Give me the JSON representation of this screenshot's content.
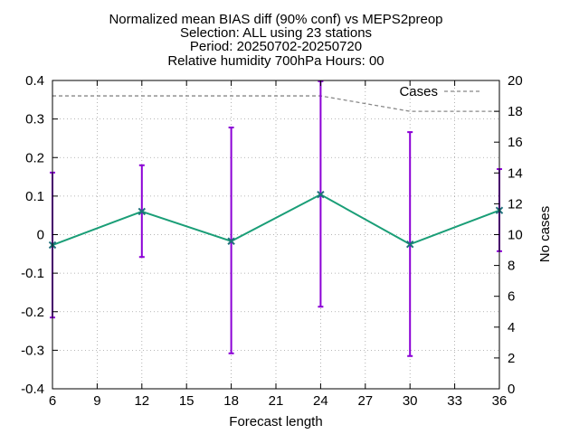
{
  "title": {
    "line1": "Normalized mean BIAS diff (90% conf) vs MEPS2preop",
    "line2": "Selection: ALL using    23 stations",
    "line3": "Period: 20250702-20250720",
    "line4": "Relative humidity 700hPa   Hours: 00"
  },
  "chart_data": {
    "type": "line",
    "xlabel": "Forecast length",
    "ylabel": "",
    "y2label": "No cases",
    "xlim": [
      6,
      36
    ],
    "ylim": [
      -0.4,
      0.4
    ],
    "y2lim": [
      0,
      20
    ],
    "x_ticks": [
      "6",
      "9",
      "12",
      "15",
      "18",
      "21",
      "24",
      "27",
      "30",
      "33",
      "36"
    ],
    "y_ticks": [
      "-0.4",
      "-0.3",
      "-0.2",
      "-0.1",
      "0",
      "0.1",
      "0.2",
      "0.3",
      "0.4"
    ],
    "y2_ticks": [
      "0",
      "2",
      "4",
      "6",
      "8",
      "10",
      "12",
      "14",
      "16",
      "18",
      "20"
    ],
    "grid": true,
    "legend": "top-right",
    "x": [
      6,
      12,
      18,
      24,
      30,
      36
    ],
    "series": [
      {
        "role": "bias",
        "color": "#1a9e77",
        "values": [
          -0.027,
          0.06,
          -0.017,
          0.104,
          -0.025,
          0.063
        ],
        "err_low": [
          -0.215,
          -0.058,
          -0.308,
          -0.187,
          -0.315,
          -0.043
        ],
        "err_high": [
          0.161,
          0.18,
          0.278,
          0.398,
          0.266,
          0.17
        ],
        "error_color": "#8b00d6"
      },
      {
        "name": "Cases",
        "axis": "y2",
        "color": "#888888",
        "dash": true,
        "values": [
          19,
          19,
          19,
          19,
          18,
          18
        ]
      }
    ]
  }
}
